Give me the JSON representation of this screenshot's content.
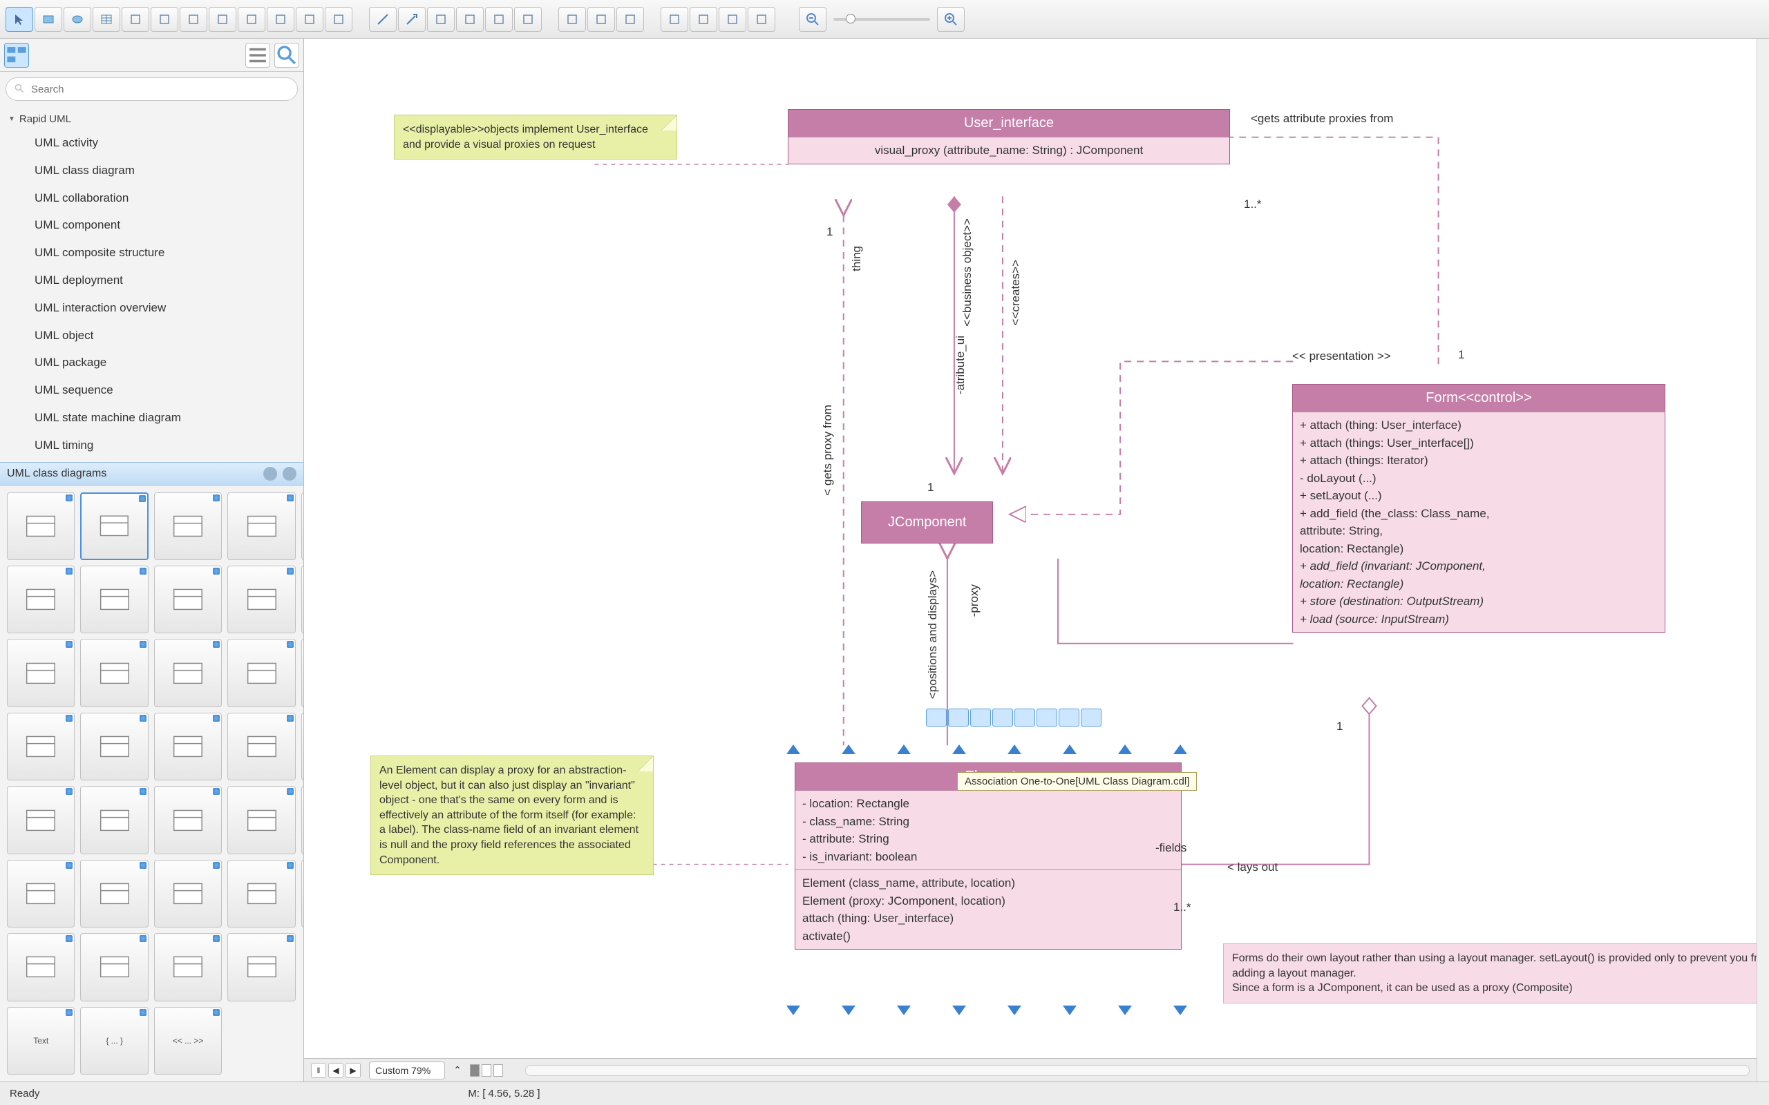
{
  "toolbar": {
    "groups": [
      [
        "pointer",
        "rect",
        "ellipse",
        "table",
        "text-block",
        "add-node",
        "tree-horiz",
        "tree-vert",
        "branch",
        "chain",
        "org",
        "grid-shape"
      ],
      [
        "line",
        "arrow",
        "bezier",
        "smart",
        "spline",
        "round"
      ],
      [
        "region-a",
        "region-b",
        "region-c"
      ],
      [
        "zoom-tool",
        "hand",
        "stamp",
        "eyedropper"
      ]
    ],
    "zoom_out": "−",
    "zoom_in": "+"
  },
  "sidebar": {
    "search_placeholder": "Search",
    "tree_header": "Rapid UML",
    "items": [
      "UML activity",
      "UML class diagram",
      "UML collaboration",
      "UML component",
      "UML composite structure",
      "UML deployment",
      "UML interaction overview",
      "UML object",
      "UML package",
      "UML sequence",
      "UML state machine diagram",
      "UML timing"
    ],
    "lib_title": "UML class diagrams",
    "shapes": [
      "class-3",
      "class-2",
      "class-1",
      "interface-lollipop",
      "class-tparam",
      "assoc",
      "assoc-1to1",
      "assoc-1toN",
      "assoc-Nto1",
      "assoc-NtoN",
      "dep",
      "dep-1",
      "dep-2",
      "gen",
      "real",
      "gen-set",
      "real-set",
      "aggr",
      "comp",
      "nav",
      "nav-1",
      "nav-2",
      "nav-N",
      "nav-1N",
      "nav-N1",
      "dashed",
      "dashed-arrow",
      "note-shape",
      "pkg",
      "pkg-open",
      "frame",
      "frame2",
      "frame3",
      "frame4",
      "",
      "text",
      "braces",
      "angles",
      "",
      ""
    ],
    "shape_labels": {
      "text": "Text",
      "braces": "{ ... }",
      "angles": "<< ... >>"
    }
  },
  "diagram": {
    "notes": {
      "displayable": "<<displayable>>objects implement User_interface and provide a visual proxies on request",
      "element": "An Element can display a proxy for an abstraction-level object, but it can also just display an \"invariant\" object - one that's the same on every form and is effectively an attribute of the form itself (for example: a label). The class-name field of an invariant element is null and the proxy field references the associated Component.",
      "forms": "Forms do their own layout rather than using a layout manager. setLayout() is provided only to prevent you from adding a layout manager.\nSince a form is a JComponent, it can be used as a proxy (Composite)"
    },
    "labels": {
      "gets_attr": "<gets attribute proxies from",
      "mult_1star_top": "1..*",
      "presentation": "<< presentation >>",
      "one_pres": "1",
      "thing": "thing",
      "one_thing": "1",
      "business": "<<business object>>",
      "creates": "<<creates>>",
      "gets_proxy": "< gets proxy from",
      "one_attr": "1",
      "atribute_ui": "-atribute_ui",
      "proxy": "-proxy",
      "positions": "<positions and displays>",
      "fields": "-fields",
      "lays_out": "< lays out",
      "mult_1star_bot": "1..*",
      "one_form": "1"
    },
    "user_interface": {
      "title": "User_interface",
      "op": "visual_proxy (attribute_name: String) : JComponent"
    },
    "jcomponent": "JComponent",
    "form": {
      "title": "Form<<control>>",
      "ops": [
        "+ attach (thing: User_interface)",
        "+ attach (things: User_interface[])",
        "+ attach (things: Iterator)",
        "- doLayout (...)",
        "+ setLayout (...)",
        "+ add_field (the_class: Class_name,",
        "                       attribute: String,",
        "                       location: Rectangle)",
        "+ add_field (invariant: JComponent,",
        "                       location: Rectangle)",
        "+ store (destination: OutputStream)",
        "+ load (source: InputStream)"
      ],
      "italic_idx": [
        8,
        9,
        10,
        11
      ]
    },
    "element": {
      "title": "-Element",
      "attrs": [
        "- location: Rectangle",
        "- class_name: String",
        "- attribute: String",
        "- is_invariant: boolean"
      ],
      "ops": [
        "Element (class_name, attribute, location)",
        "Element (proxy: JComponent, location)",
        "attach (thing: User_interface)",
        "activate()"
      ]
    },
    "tooltip": "Association One-to-One[UML Class Diagram.cdl]",
    "colors": {
      "class_fill": "#f7dce8",
      "class_header": "#c47ea8",
      "class_border": "#a85a8a",
      "note_fill": "#e8f0a8",
      "note_border": "#cad080",
      "connector": "#c47ea8",
      "selection": "#3a80d0"
    }
  },
  "hbar": {
    "zoom": "Custom 79%"
  },
  "status": {
    "ready": "Ready",
    "coords": "M: [ 4.56, 5.28 ]"
  }
}
